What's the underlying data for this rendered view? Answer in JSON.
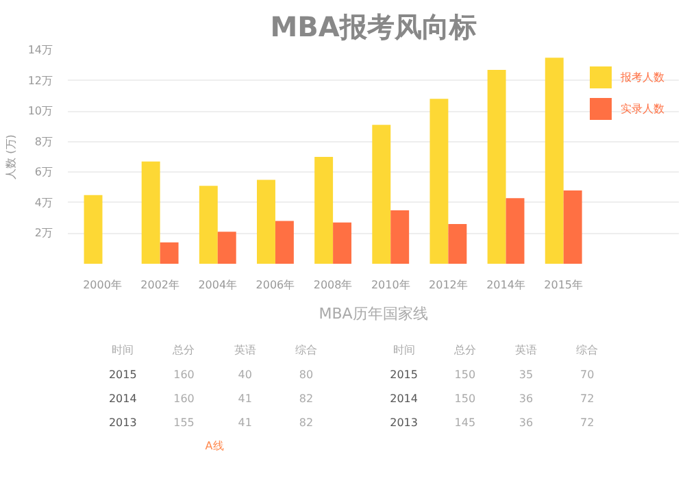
{
  "chart_data": [
    {
      "type": "bar",
      "title": "MBA报考风向标",
      "ylabel": "人数 (万)",
      "categories": [
        "2000年",
        "2002年",
        "2004年",
        "2006年",
        "2008年",
        "2010年",
        "2012年",
        "2014年",
        "2015年"
      ],
      "series": [
        {
          "name": "报考人数",
          "color": "#fdd835",
          "values": [
            4.5,
            6.7,
            5.1,
            5.5,
            7.0,
            9.1,
            10.8,
            12.7,
            13.5
          ]
        },
        {
          "name": "实录人数",
          "color": "#ff7043",
          "values": [
            null,
            1.4,
            2.1,
            2.8,
            2.7,
            3.5,
            2.6,
            4.3,
            4.8
          ]
        }
      ],
      "ylim": [
        0,
        14
      ],
      "yticks": [
        {
          "value": 2,
          "label": "2万"
        },
        {
          "value": 4,
          "label": "4万"
        },
        {
          "value": 6,
          "label": "6万"
        },
        {
          "value": 8,
          "label": "8万"
        },
        {
          "value": 10,
          "label": "10万"
        },
        {
          "value": 12,
          "label": "12万"
        },
        {
          "value": 14,
          "label": "14万"
        }
      ],
      "grid": "y",
      "legend": "top right"
    },
    {
      "type": "other",
      "title": "MBA历年国家线",
      "annotations": [
        "时间",
        "总分",
        "英语",
        "综合",
        "2015",
        "160",
        "40",
        "80",
        "2014",
        "160",
        "41",
        "82",
        "2013",
        "155",
        "41",
        "82",
        "A线",
        "时间",
        "总分",
        "英语",
        "综合",
        "2015",
        "150",
        "35",
        "70",
        "2014",
        "150",
        "36",
        "72",
        "2013",
        "145",
        "36",
        "72"
      ]
    }
  ]
}
